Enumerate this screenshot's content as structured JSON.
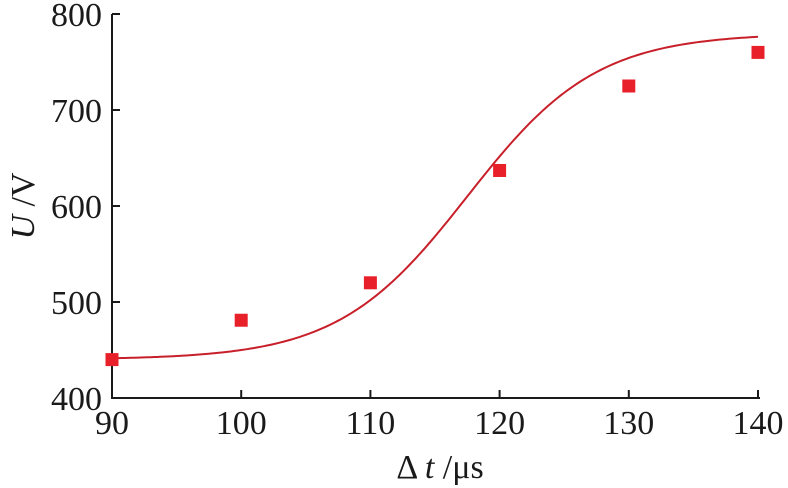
{
  "chart_data": {
    "type": "scatter",
    "title": "",
    "xlabel": {
      "symbol": "Δ",
      "var": "t",
      "unit": " /μs"
    },
    "ylabel": {
      "var": "U",
      "unit": " /V"
    },
    "xlim": [
      90,
      140
    ],
    "ylim": [
      400,
      800
    ],
    "xticks": [
      90,
      100,
      110,
      120,
      130,
      140
    ],
    "yticks": [
      400,
      500,
      600,
      700,
      800
    ],
    "grid": false,
    "legend": "none",
    "series": [
      {
        "marker": "square",
        "color": "#e8202a",
        "points": [
          {
            "x": 90,
            "y": 440
          },
          {
            "x": 100,
            "y": 481
          },
          {
            "x": 110,
            "y": 520
          },
          {
            "x": 120,
            "y": 637
          },
          {
            "x": 130,
            "y": 725
          },
          {
            "x": 140,
            "y": 760
          }
        ]
      }
    ],
    "fit_curve": {
      "type": "sigmoid",
      "color": "#c8202a",
      "params": {
        "A1": 440,
        "A2": 780,
        "x0": 117.5,
        "dx": 5.0
      }
    }
  }
}
